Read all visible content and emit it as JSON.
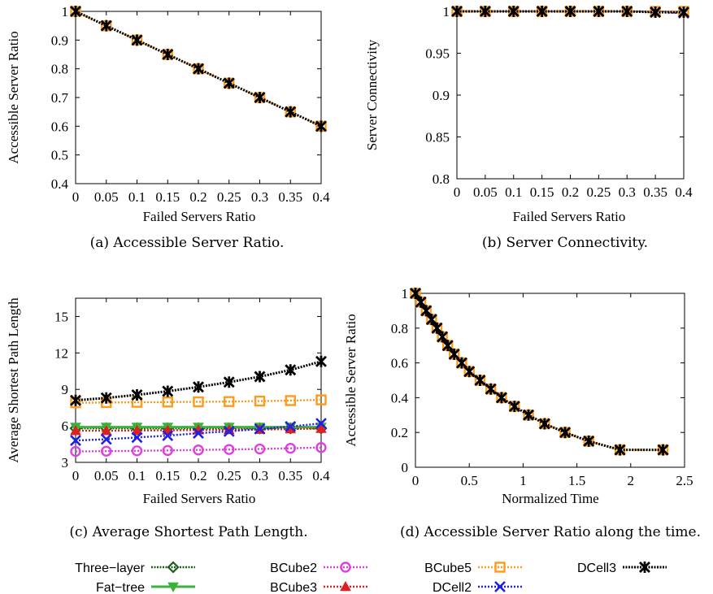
{
  "legend": [
    {
      "key": "three_layer",
      "label": "Three−layer",
      "color": "#1f5a1f",
      "marker": "diamond"
    },
    {
      "key": "fat_tree",
      "label": "Fat−tree",
      "color": "#3bb33b",
      "marker": "triangle-down"
    },
    {
      "key": "bcube2",
      "label": "BCube2",
      "color": "#e040e0",
      "marker": "circle"
    },
    {
      "key": "bcube3",
      "label": "BCube3",
      "color": "#e02020",
      "marker": "triangle-up"
    },
    {
      "key": "bcube5",
      "label": "BCube5",
      "color": "#ff9a1a",
      "marker": "square"
    },
    {
      "key": "dcell2",
      "label": "DCell2",
      "color": "#2020e0",
      "marker": "x"
    },
    {
      "key": "dcell3",
      "label": "DCell3",
      "color": "#000000",
      "marker": "star"
    }
  ],
  "chart_data": [
    {
      "id": "a",
      "type": "line",
      "caption": "(a)  Accessible Server Ratio.",
      "xlabel": "Failed Servers Ratio",
      "ylabel": "Accessible Server Ratio",
      "xlim": [
        0,
        0.4
      ],
      "ylim": [
        0.4,
        1.0
      ],
      "xticks": [
        "0",
        "0.05",
        "0.1",
        "0.15",
        "0.2",
        "0.25",
        "0.3",
        "0.35",
        "0.4"
      ],
      "yticks": [
        "0.4",
        "0.5",
        "0.6",
        "0.7",
        "0.8",
        "0.9",
        "1"
      ],
      "x": [
        0,
        0.05,
        0.1,
        0.15,
        0.2,
        0.25,
        0.3,
        0.35,
        0.4
      ],
      "series": [
        {
          "key": "bcube5",
          "values": [
            1.0,
            0.95,
            0.9,
            0.85,
            0.8,
            0.75,
            0.7,
            0.65,
            0.6
          ]
        },
        {
          "key": "dcell3",
          "values": [
            1.0,
            0.95,
            0.9,
            0.85,
            0.8,
            0.75,
            0.7,
            0.65,
            0.6
          ]
        }
      ]
    },
    {
      "id": "b",
      "type": "line",
      "caption": "(b)  Server Connectivity.",
      "xlabel": "Failed Servers Ratio",
      "ylabel": "Server Connectivity",
      "xlim": [
        0,
        0.4
      ],
      "ylim": [
        0.8,
        1.0
      ],
      "xticks": [
        "0",
        "0.05",
        "0.1",
        "0.15",
        "0.2",
        "0.25",
        "0.3",
        "0.35",
        "0.4"
      ],
      "yticks": [
        "0.8",
        "0.85",
        "0.9",
        "0.95",
        "1"
      ],
      "x": [
        0,
        0.05,
        0.1,
        0.15,
        0.2,
        0.25,
        0.3,
        0.35,
        0.4
      ],
      "series": [
        {
          "key": "dcell2",
          "values": [
            1.0,
            1.0,
            1.0,
            1.0,
            1.0,
            1.0,
            1.0,
            0.999,
            0.998
          ]
        },
        {
          "key": "bcube5",
          "values": [
            1.0,
            1.0,
            1.0,
            1.0,
            1.0,
            1.0,
            1.0,
            1.0,
            1.0
          ]
        },
        {
          "key": "dcell3",
          "values": [
            1.0,
            1.0,
            1.0,
            1.0,
            1.0,
            1.0,
            1.0,
            0.999,
            0.999
          ]
        }
      ]
    },
    {
      "id": "c",
      "type": "line",
      "caption": "(c)  Average Shortest Path Length.",
      "xlabel": "Failed Servers Ratio",
      "ylabel": "Average Shortest Path Length",
      "xlim": [
        0,
        0.4
      ],
      "ylim": [
        3,
        16.5
      ],
      "xticks": [
        "0",
        "0.05",
        "0.1",
        "0.15",
        "0.2",
        "0.25",
        "0.3",
        "0.35",
        "0.4"
      ],
      "yticks": [
        "3",
        "6",
        "9",
        "12",
        "15"
      ],
      "x": [
        0,
        0.05,
        0.1,
        0.15,
        0.2,
        0.25,
        0.3,
        0.35,
        0.4
      ],
      "series": [
        {
          "key": "three_layer",
          "values": [
            5.8,
            5.8,
            5.8,
            5.8,
            5.8,
            5.8,
            5.8,
            5.8,
            5.8
          ]
        },
        {
          "key": "fat_tree",
          "values": [
            5.9,
            5.9,
            5.9,
            5.9,
            5.9,
            5.9,
            5.9,
            5.9,
            5.9
          ]
        },
        {
          "key": "bcube2",
          "values": [
            3.9,
            3.92,
            3.95,
            3.98,
            4.02,
            4.06,
            4.1,
            4.16,
            4.22
          ]
        },
        {
          "key": "bcube3",
          "values": [
            5.6,
            5.6,
            5.62,
            5.64,
            5.66,
            5.68,
            5.7,
            5.74,
            5.78
          ]
        },
        {
          "key": "bcube5",
          "values": [
            7.9,
            7.92,
            7.94,
            7.96,
            7.98,
            8.0,
            8.04,
            8.08,
            8.14
          ]
        },
        {
          "key": "dcell2",
          "values": [
            4.8,
            4.9,
            5.05,
            5.2,
            5.4,
            5.55,
            5.75,
            5.95,
            6.2
          ]
        },
        {
          "key": "dcell3",
          "values": [
            8.1,
            8.3,
            8.55,
            8.85,
            9.2,
            9.6,
            10.05,
            10.6,
            11.3
          ]
        }
      ]
    },
    {
      "id": "d",
      "type": "line",
      "caption": "(d)  Accessible Server Ratio along the time.",
      "xlabel": "Normalized Time",
      "ylabel": "Accessible Server Ratio",
      "xlim": [
        0,
        2.5
      ],
      "ylim": [
        0,
        1.0
      ],
      "xticks": [
        "0",
        "0.5",
        "1",
        "1.5",
        "2",
        "2.5"
      ],
      "yticks": [
        "0",
        "0.2",
        "0.4",
        "0.6",
        "0.8",
        "1"
      ],
      "x": [
        0,
        0.05,
        0.1,
        0.15,
        0.2,
        0.25,
        0.3,
        0.36,
        0.43,
        0.5,
        0.6,
        0.7,
        0.8,
        0.92,
        1.05,
        1.2,
        1.39,
        1.61,
        1.9,
        2.3
      ],
      "series": [
        {
          "key": "bcube5",
          "values": [
            1.0,
            0.95,
            0.9,
            0.85,
            0.8,
            0.75,
            0.7,
            0.65,
            0.6,
            0.55,
            0.5,
            0.45,
            0.4,
            0.35,
            0.3,
            0.25,
            0.2,
            0.15,
            0.1,
            0.1
          ]
        },
        {
          "key": "dcell3",
          "values": [
            1.0,
            0.95,
            0.9,
            0.85,
            0.8,
            0.75,
            0.7,
            0.65,
            0.6,
            0.55,
            0.5,
            0.45,
            0.4,
            0.35,
            0.3,
            0.25,
            0.2,
            0.15,
            0.1,
            0.1
          ]
        }
      ]
    }
  ]
}
